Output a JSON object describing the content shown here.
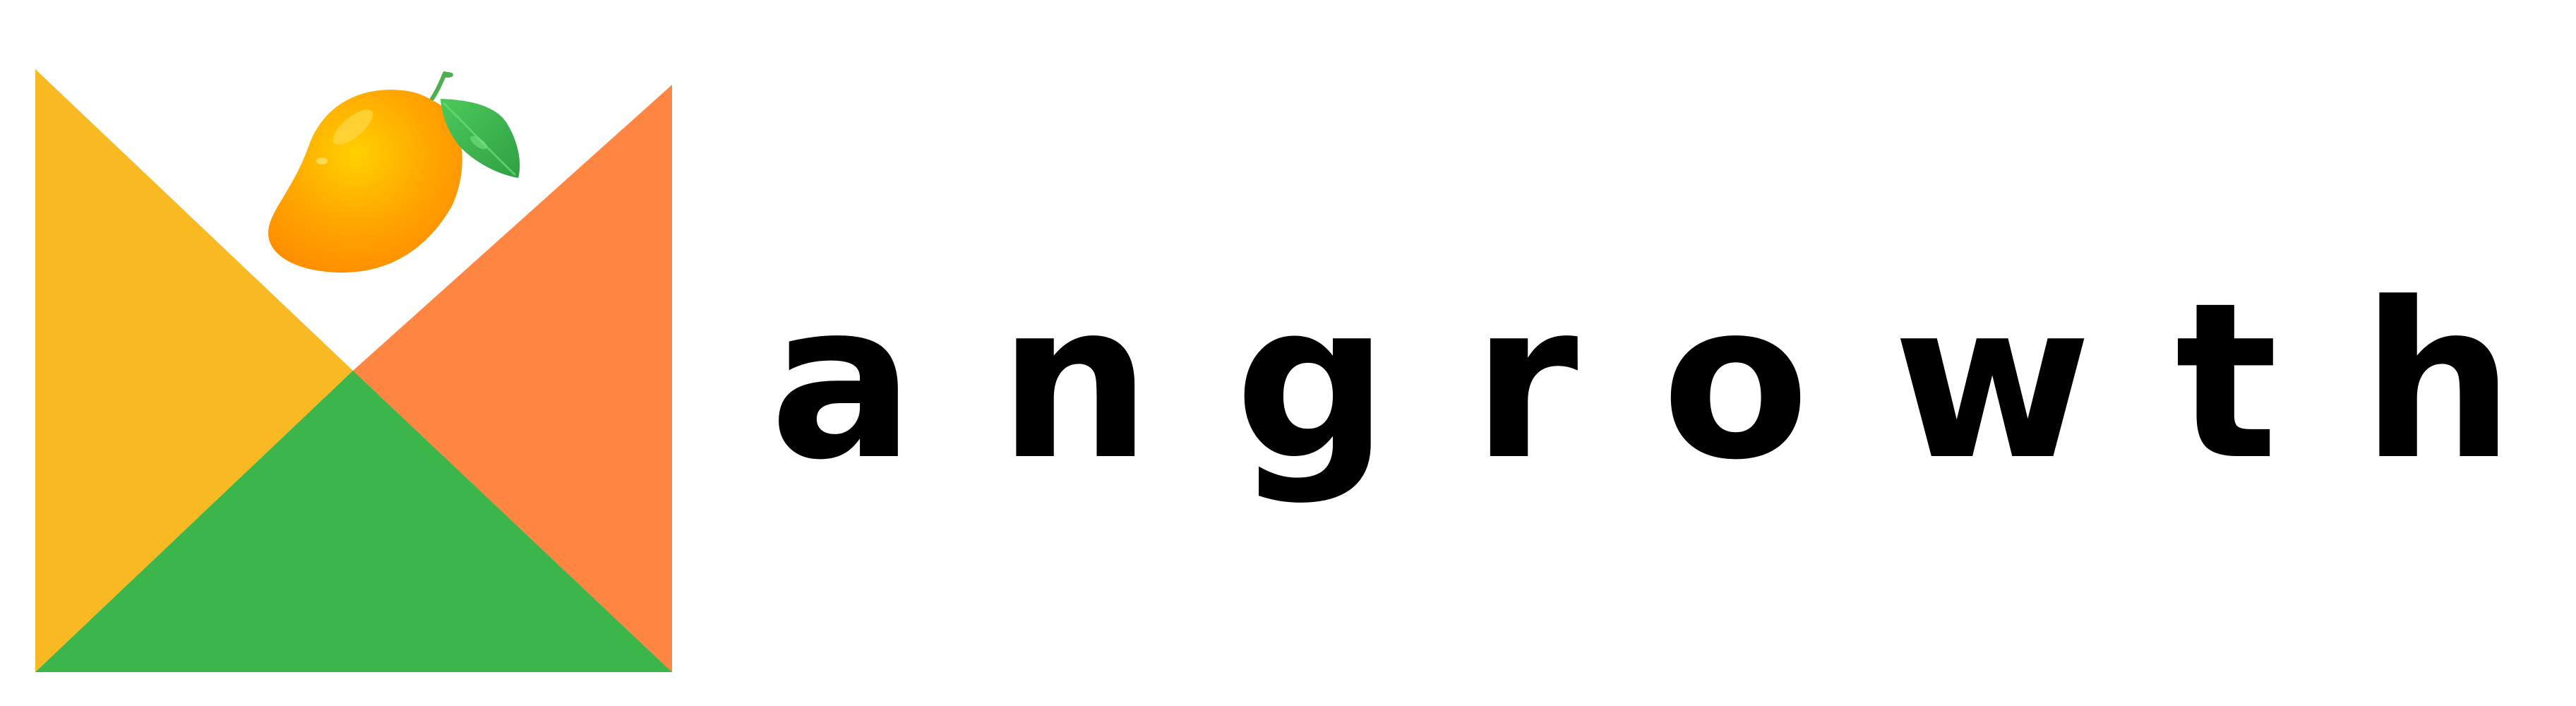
{
  "brand": {
    "wordmark": "angrowth",
    "logo_mark": {
      "icon": "mango-icon",
      "letter_shape": "M",
      "colors": {
        "left_panel": "#F8B922",
        "right_panel": "#FF8542",
        "bottom_panel": "#3CB54A",
        "mango": "#FFA500",
        "leaf": "#3CB54A"
      }
    },
    "text_color": "#000000",
    "background": "#FFFFFF"
  }
}
